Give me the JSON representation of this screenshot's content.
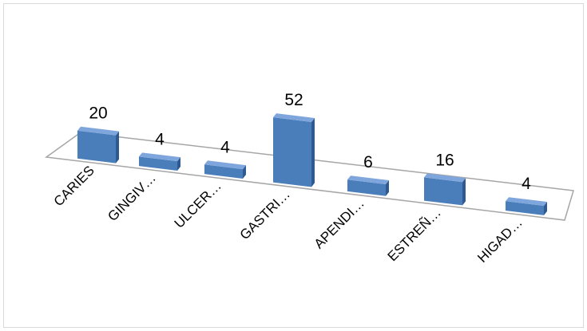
{
  "chart_data": {
    "type": "bar",
    "subtype": "3d-column",
    "categories": [
      "CARIES",
      "GINGIV…",
      "ULCER…",
      "GASTRI…",
      "APENDI…",
      "ESTREÑ…",
      "HIGAD…"
    ],
    "values": [
      20,
      4,
      4,
      52,
      6,
      16,
      4
    ],
    "data_labels": [
      "20",
      "4",
      "4",
      "52",
      "6",
      "16",
      "4"
    ],
    "title": "",
    "xlabel": "",
    "ylabel": "",
    "ylim": [
      0,
      52
    ],
    "grid": false,
    "legend": "none",
    "colors": {
      "bar_front": "#4a7ebb",
      "bar_side": "#2f5a91",
      "bar_top": "#7ea6dc",
      "floor_stroke": "#a6a6a6",
      "frame_stroke": "#d9d9d9"
    }
  }
}
